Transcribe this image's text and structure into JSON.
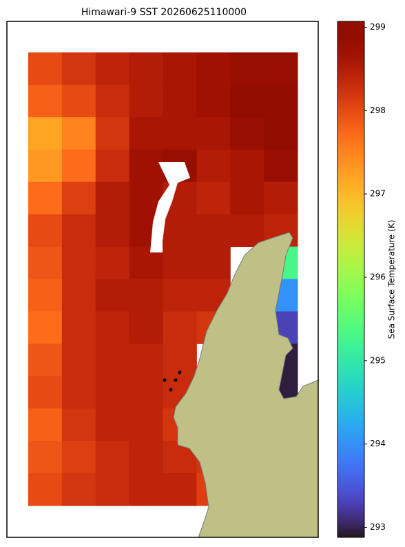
{
  "title": "Himawari-9 SST 20260625110000",
  "colorbar": {
    "label": "Sea Surface Temperature (K)",
    "colormap": "turbo",
    "clim": [
      292.88,
      299.07
    ],
    "ticks": [
      293,
      294,
      295,
      296,
      297,
      298,
      299
    ]
  },
  "field": {
    "values": [
      [
        298.0,
        298.2,
        298.4,
        298.5,
        298.6,
        298.7,
        298.8,
        298.8
      ],
      [
        297.8,
        298.0,
        298.3,
        298.5,
        298.6,
        298.7,
        298.9,
        298.9
      ],
      [
        297.2,
        297.5,
        298.2,
        298.6,
        298.6,
        298.6,
        298.8,
        298.9
      ],
      [
        297.3,
        297.7,
        298.3,
        298.7,
        298.8,
        298.5,
        298.6,
        298.8
      ],
      [
        297.7,
        298.1,
        298.5,
        298.7,
        298.5,
        298.4,
        298.6,
        298.5
      ],
      [
        298.0,
        298.3,
        298.5,
        298.7,
        298.5,
        298.5,
        298.5,
        298.4
      ],
      [
        297.9,
        298.3,
        298.4,
        298.6,
        298.5,
        298.5,
        null,
        295.3
      ],
      [
        297.8,
        298.3,
        298.5,
        298.5,
        298.4,
        298.4,
        null,
        294.0
      ],
      [
        297.7,
        298.3,
        298.4,
        298.5,
        298.3,
        298.2,
        null,
        293.3
      ],
      [
        297.9,
        298.3,
        298.4,
        298.4,
        298.3,
        null,
        null,
        292.95
      ],
      [
        298.0,
        298.3,
        298.4,
        298.4,
        298.3,
        null,
        null,
        292.95
      ],
      [
        297.8,
        298.2,
        298.4,
        298.4,
        298.2,
        null,
        null,
        null
      ],
      [
        297.9,
        298.1,
        298.3,
        298.4,
        298.3,
        298.2,
        null,
        null
      ],
      [
        298.0,
        298.2,
        298.3,
        298.4,
        298.4,
        298.1,
        null,
        null
      ]
    ]
  }
}
